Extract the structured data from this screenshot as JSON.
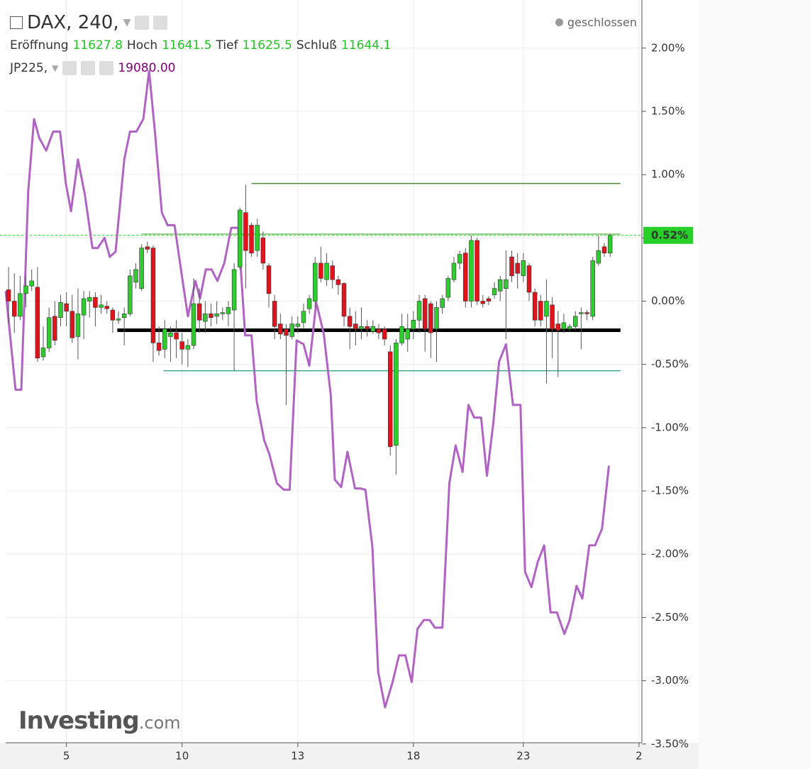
{
  "chart_data": {
    "type": "candlestick",
    "status": "geschlossen",
    "ohlc": {
      "open_label": "Eröffnung",
      "open": "11627.8",
      "high_label": "Hoch",
      "high": "11641.5",
      "low_label": "Tief",
      "low": "11625.5",
      "close_label": "Schluß",
      "close": "11644.1"
    },
    "compare_value": "19080.00",
    "logo": {
      "main": "Investing",
      "suffix": ".com"
    },
    "xlim": [
      -0.5,
      109.5
    ],
    "xticks": [
      {
        "value": 10,
        "label": "5"
      },
      {
        "value": 30,
        "label": "10"
      },
      {
        "value": 50,
        "label": "13"
      },
      {
        "value": 70,
        "label": "18"
      },
      {
        "value": 89,
        "label": "23"
      },
      {
        "value": 109,
        "label": "2"
      }
    ],
    "ylim": [
      -3.49,
      2.38
    ],
    "yticks": [
      {
        "value": 2,
        "label": "2.00%"
      },
      {
        "value": 1.5,
        "label": "1.50%"
      },
      {
        "value": 1,
        "label": "1.00%"
      },
      {
        "value": 0.5,
        "label": "0.50%"
      },
      {
        "value": 0,
        "label": "0.00%"
      },
      {
        "value": -0.5,
        "label": "-0.50%"
      },
      {
        "value": -1,
        "label": "-1.00%"
      },
      {
        "value": -1.5,
        "label": "-1.50%"
      },
      {
        "value": -2,
        "label": "-2.00%"
      },
      {
        "value": -2.5,
        "label": "-2.50%"
      },
      {
        "value": -3,
        "label": "-3.00%"
      },
      {
        "value": -3.5,
        "label": "-3.50%"
      }
    ],
    "grid": true,
    "last_value": 0.52,
    "last_label": "0.52%",
    "last_color": "#27d027",
    "levels": [
      {
        "value": 0.93,
        "start": 42,
        "end": 105.8,
        "color": "#4f8a3f",
        "style": "thin"
      },
      {
        "value": 0.53,
        "start": 23,
        "end": 105.8,
        "color": "#77c463",
        "style": "thin"
      },
      {
        "value": -0.23,
        "start": 18.8,
        "end": 105.8,
        "color": "#000000",
        "style": "thick"
      },
      {
        "value": -0.55,
        "start": 26.8,
        "end": 105.8,
        "color": "#3aa88a",
        "style": "thin"
      }
    ],
    "series": [
      {
        "name": "DAX, 240,",
        "type": "candlestick",
        "up_color": "#2ecc2e",
        "down_color": "#e0141c",
        "open": [
          0.09,
          0,
          -0.12,
          0.06,
          0.12,
          0.11,
          -0.44,
          -0.37,
          -0.12,
          -0.13,
          -0.02,
          -0.08,
          -0.28,
          -0.11,
          0,
          0.03,
          -0.05,
          -0.04,
          -0.07,
          -0.15,
          -0.13,
          -0.1,
          0.15,
          0.1,
          0.43,
          0.42,
          -0.33,
          -0.38,
          -0.28,
          -0.25,
          -0.32,
          -0.38,
          -0.35,
          -0.02,
          -0.16,
          -0.1,
          -0.12,
          -0.1,
          -0.1,
          -0.07,
          0.27,
          0.7,
          0.6,
          0.4,
          0.5,
          0.28,
          0,
          -0.18,
          -0.22,
          -0.28,
          -0.2,
          -0.17,
          -0.06,
          0,
          0.3,
          0.17,
          0.28,
          0.17,
          0.14,
          -0.12,
          -0.18,
          -0.22,
          -0.2,
          -0.24,
          -0.22,
          -0.22,
          -0.4,
          -1.14,
          -0.33,
          -0.3,
          -0.22,
          -0.15,
          0.02,
          -0.02,
          -0.22,
          -0.05,
          0.03,
          0.17,
          0.3,
          0.38,
          0,
          0.48,
          0,
          0.02,
          0.05,
          0.08,
          0.1,
          0.35,
          0.3,
          0.2,
          0.28,
          0.07,
          0,
          -0.12,
          -0.03,
          -0.18,
          -0.22,
          -0.22,
          -0.2,
          -0.1,
          -0.09,
          -0.12,
          0.3,
          0.43,
          0.38
        ],
        "high": [
          0.27,
          0.22,
          0.2,
          0.2,
          0.25,
          0.27,
          -0.2,
          -0.05,
          0,
          0.05,
          0.07,
          0.05,
          0.1,
          0.08,
          0.08,
          0.07,
          0.05,
          0,
          -0.05,
          -0.08,
          -0.05,
          0.25,
          0.3,
          0.45,
          0.47,
          0.44,
          -0.2,
          -0.15,
          -0.2,
          -0.15,
          -0.25,
          -0.3,
          0.18,
          0.1,
          0,
          -0.02,
          0,
          -0.05,
          0,
          0.3,
          0.74,
          0.92,
          0.62,
          0.65,
          0.55,
          0.3,
          0.05,
          -0.1,
          -0.18,
          -0.12,
          -0.12,
          -0.02,
          0.05,
          0.35,
          0.43,
          0.38,
          0.32,
          0.2,
          0.15,
          -0.05,
          -0.08,
          -0.05,
          -0.15,
          -0.15,
          -0.18,
          -0.2,
          -0.35,
          -0.3,
          -0.1,
          -0.1,
          -0.08,
          0.05,
          0.05,
          0,
          0,
          0.05,
          0.2,
          0.35,
          0.4,
          0.42,
          0.52,
          0.5,
          0.05,
          0.04,
          0.15,
          0.2,
          0.4,
          0.4,
          0.38,
          0.38,
          0.3,
          0.1,
          0.05,
          0.17,
          0.03,
          -0.08,
          -0.1,
          -0.18,
          -0.08,
          -0.05,
          -0.07,
          0.35,
          0.52,
          0.46,
          0.53
        ],
        "low": [
          -0.17,
          -0.25,
          -0.15,
          -0.05,
          0.08,
          -0.48,
          -0.47,
          -0.4,
          -0.35,
          -0.2,
          -0.2,
          -0.33,
          -0.46,
          -0.3,
          -0.13,
          -0.2,
          -0.1,
          -0.1,
          -0.25,
          -0.18,
          -0.35,
          -0.12,
          0.1,
          0.08,
          0.38,
          -0.48,
          -0.43,
          -0.45,
          -0.48,
          -0.45,
          -0.5,
          -0.52,
          -0.38,
          -0.25,
          -0.25,
          -0.2,
          -0.18,
          -0.15,
          -0.2,
          -0.55,
          0.25,
          0.1,
          0.35,
          0.35,
          0.25,
          -0.05,
          -0.3,
          -0.3,
          -0.82,
          -0.3,
          -0.25,
          -0.22,
          -0.1,
          -0.05,
          0.15,
          0.12,
          0.1,
          0.05,
          -0.2,
          -0.38,
          -0.35,
          -0.3,
          -0.28,
          -0.26,
          -0.3,
          -0.35,
          -1.22,
          -1.37,
          -0.35,
          -0.4,
          -0.3,
          -0.25,
          -0.4,
          -0.45,
          -0.48,
          -0.1,
          0,
          0.15,
          0.25,
          -0.05,
          -0.05,
          -0.03,
          -0.05,
          -0.03,
          0.02,
          0,
          -0.3,
          0.15,
          0.1,
          0.15,
          0,
          -0.2,
          -0.2,
          -0.65,
          -0.45,
          -0.6,
          -0.25,
          -0.24,
          -0.23,
          -0.38,
          -0.15,
          -0.15,
          0.28,
          0.35,
          0.35
        ],
        "close": [
          0,
          -0.12,
          0.06,
          0.12,
          0.16,
          -0.45,
          -0.37,
          -0.13,
          -0.31,
          -0.01,
          -0.08,
          -0.29,
          -0.1,
          0.02,
          0.03,
          -0.05,
          -0.03,
          -0.06,
          -0.15,
          -0.14,
          -0.1,
          0.2,
          0.25,
          0.42,
          0.41,
          -0.33,
          -0.39,
          -0.22,
          -0.25,
          -0.3,
          -0.38,
          -0.35,
          -0.02,
          -0.15,
          -0.1,
          -0.13,
          -0.1,
          -0.09,
          -0.05,
          0.25,
          0.72,
          0.4,
          0.38,
          0.6,
          0.3,
          0.06,
          -0.2,
          -0.26,
          -0.27,
          -0.18,
          -0.18,
          -0.08,
          0.02,
          0.3,
          0.18,
          0.3,
          0.17,
          0.13,
          -0.12,
          -0.2,
          -0.22,
          -0.2,
          -0.22,
          -0.2,
          -0.25,
          -0.3,
          -1.15,
          -0.33,
          -0.2,
          -0.22,
          -0.15,
          0,
          -0.22,
          -0.25,
          -0.05,
          0.02,
          0.18,
          0.3,
          0.37,
          0,
          0.48,
          0,
          -0.02,
          0,
          0.1,
          0.17,
          0.17,
          0.2,
          0.22,
          0.32,
          0.07,
          -0.15,
          -0.15,
          0,
          -0.22,
          -0.23,
          -0.17,
          -0.2,
          -0.12,
          -0.09,
          -0.1,
          0.32,
          0.4,
          0.38,
          0.52
        ]
      },
      {
        "name": "JP225,",
        "type": "line",
        "color": "#b163c4",
        "x": [
          -0.5,
          1.2,
          2.2,
          3.4,
          4.4,
          5.3,
          6.5,
          7.7,
          8.9,
          9.9,
          10.8,
          12,
          13.2,
          14.5,
          15.4,
          16.6,
          17.5,
          18.5,
          20,
          21,
          22.1,
          23.3,
          24.3,
          25.3,
          26.5,
          27.5,
          28.7,
          29.8,
          31,
          32.3,
          33.1,
          34.1,
          35.1,
          36.1,
          37.3,
          38.5,
          39.7,
          40.9,
          42,
          42.9,
          44.2,
          45.1,
          46.4,
          47.6,
          48.6,
          49.8,
          51,
          52,
          53.2,
          54.5,
          55.7,
          56.4,
          57.5,
          58.6,
          59.9,
          60.8,
          61.7,
          62.9,
          63.9,
          65.1,
          66.4,
          67.5,
          68.6,
          69.7,
          70.7,
          71.8,
          72.8,
          73.7,
          75,
          76.2,
          77.3,
          78.5,
          79.5,
          80.5,
          81.7,
          82.7,
          83.8,
          84.8,
          86,
          87.2,
          88.5,
          89.3,
          90.4,
          91.5,
          92.6,
          93.7,
          94.8,
          96.1,
          97,
          98.2,
          99.2,
          100.4,
          101.4,
          102.6,
          103.8
        ],
        "values": [
          0.08,
          -0.7,
          -0.7,
          0.87,
          1.44,
          1.29,
          1.19,
          1.34,
          1.34,
          0.93,
          0.71,
          1.12,
          0.84,
          0.42,
          0.42,
          0.5,
          0.35,
          0.39,
          1.12,
          1.34,
          1.34,
          1.44,
          1.82,
          1.34,
          0.7,
          0.6,
          0.6,
          0.25,
          -0.12,
          0.16,
          0.02,
          0.25,
          0.25,
          0.16,
          0.3,
          0.58,
          0.58,
          -0.27,
          -0.27,
          -0.79,
          -1.1,
          -1.21,
          -1.44,
          -1.49,
          -1.49,
          -0.31,
          -0.34,
          -0.51,
          -0.01,
          -0.26,
          -0.74,
          -1.41,
          -1.47,
          -1.19,
          -1.48,
          -1.48,
          -1.49,
          -1.94,
          -2.93,
          -3.21,
          -3.01,
          -2.8,
          -2.8,
          -3.01,
          -2.59,
          -2.52,
          -2.52,
          -2.58,
          -2.58,
          -1.44,
          -1.14,
          -1.35,
          -0.82,
          -0.92,
          -0.92,
          -1.38,
          -0.97,
          -0.48,
          -0.34,
          -0.82,
          -0.82,
          -2.14,
          -2.26,
          -2.06,
          -1.93,
          -2.46,
          -2.46,
          -2.63,
          -2.52,
          -2.25,
          -2.35,
          -1.93,
          -1.93,
          -1.8,
          -1.3
        ]
      }
    ]
  }
}
